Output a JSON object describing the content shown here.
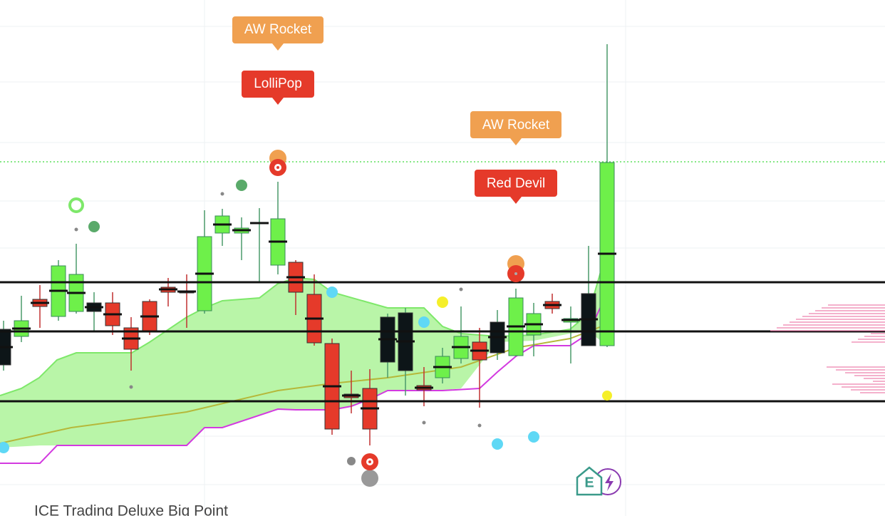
{
  "labels": [
    "AW Rocket",
    "LolliPop",
    "AW Rocket",
    "Red Devil"
  ],
  "badge": "E",
  "footer": "ICE Trading Deluxe Big Point"
}
